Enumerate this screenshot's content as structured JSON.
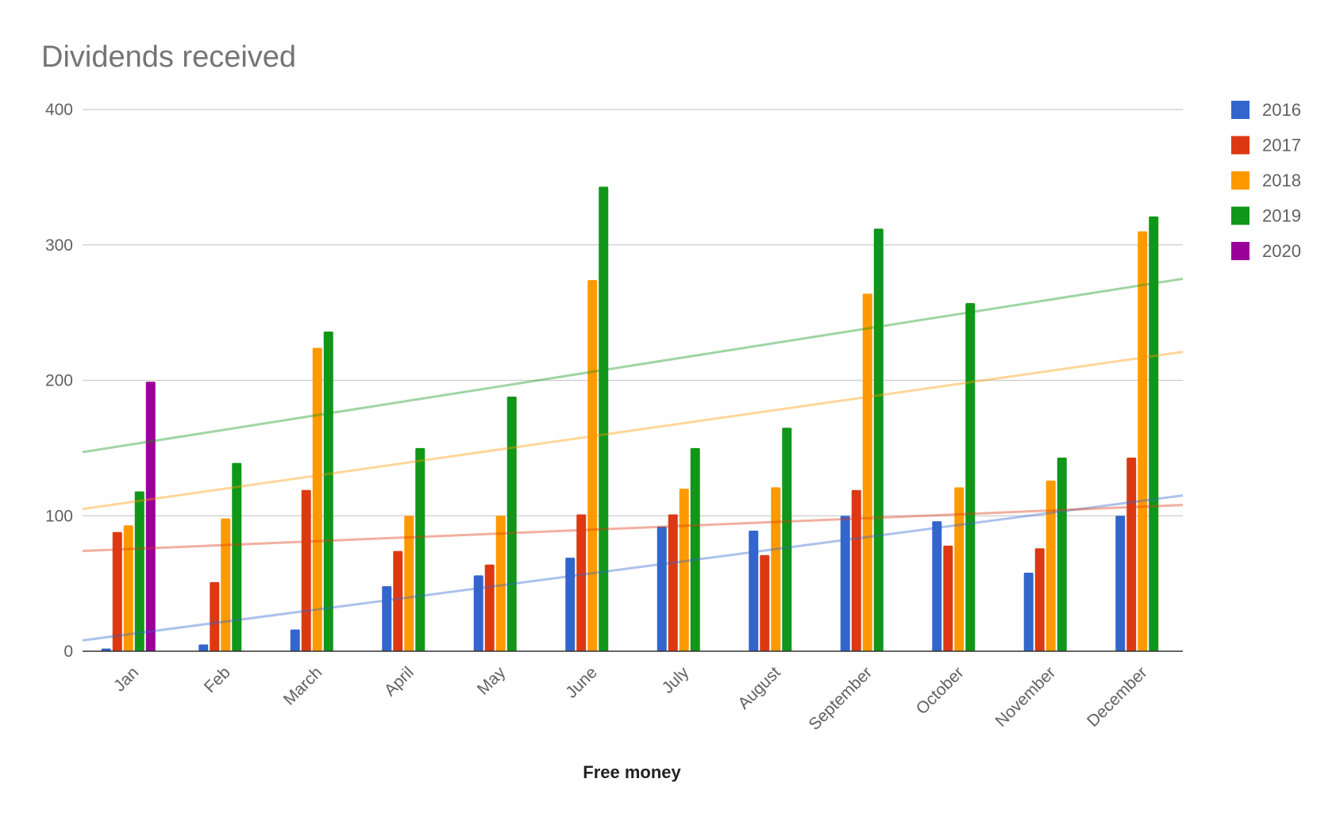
{
  "chart_data": {
    "type": "bar",
    "title": "Dividends received",
    "xlabel": "Free money",
    "ylabel": "",
    "ylim": [
      0,
      400
    ],
    "yticks": [
      0,
      100,
      200,
      300,
      400
    ],
    "grid": true,
    "legend_position": "right",
    "categories": [
      "Jan",
      "Feb",
      "March",
      "April",
      "May",
      "June",
      "July",
      "August",
      "September",
      "October",
      "November",
      "December"
    ],
    "series": [
      {
        "name": "2016",
        "color": "#3366cc",
        "values": [
          2,
          5,
          16,
          48,
          56,
          69,
          92,
          89,
          100,
          96,
          58,
          100
        ],
        "trendline": [
          8,
          115
        ]
      },
      {
        "name": "2017",
        "color": "#dc3912",
        "values": [
          88,
          51,
          119,
          74,
          64,
          101,
          101,
          71,
          119,
          78,
          76,
          143
        ],
        "trendline": [
          74,
          108
        ]
      },
      {
        "name": "2018",
        "color": "#ff9900",
        "values": [
          93,
          98,
          224,
          100,
          100,
          274,
          120,
          121,
          264,
          121,
          126,
          310
        ],
        "trendline": [
          105,
          221
        ]
      },
      {
        "name": "2019",
        "color": "#109618",
        "values": [
          118,
          139,
          236,
          150,
          188,
          343,
          150,
          165,
          312,
          257,
          143,
          321
        ],
        "trendline": [
          147,
          275
        ]
      },
      {
        "name": "2020",
        "color": "#990099",
        "values": [
          199,
          null,
          null,
          null,
          null,
          null,
          null,
          null,
          null,
          null,
          null,
          null
        ],
        "trendline": null
      }
    ]
  }
}
